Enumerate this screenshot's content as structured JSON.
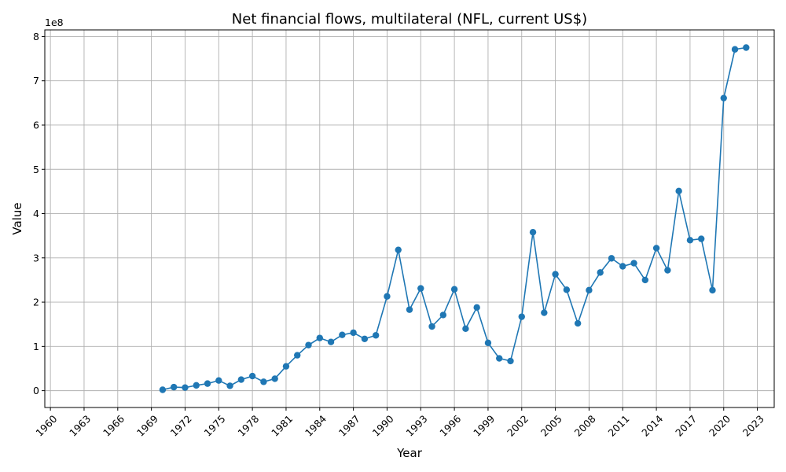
{
  "chart_data": {
    "type": "line",
    "title": "Net financial flows, multilateral (NFL, current US$)",
    "xlabel": "Year",
    "ylabel": "Value",
    "y_multiplier_label": "1e8",
    "y_multiplier": 100000000,
    "xlim": [
      1959.5,
      2024.5
    ],
    "ylim": [
      -0.38,
      8.15
    ],
    "x_ticks": [
      1960,
      1963,
      1966,
      1969,
      1972,
      1975,
      1978,
      1981,
      1984,
      1987,
      1990,
      1993,
      1996,
      1999,
      2002,
      2005,
      2008,
      2011,
      2014,
      2017,
      2020,
      2023
    ],
    "y_ticks": [
      0,
      1,
      2,
      3,
      4,
      5,
      6,
      7,
      8
    ],
    "grid": true,
    "series_color": "#1f77b4",
    "series": [
      {
        "x": [
          1970,
          1971,
          1972,
          1973,
          1974,
          1975,
          1976,
          1977,
          1978,
          1979,
          1980,
          1981,
          1982,
          1983,
          1984,
          1985,
          1986,
          1987,
          1988,
          1989,
          1990,
          1991,
          1992,
          1993,
          1994,
          1995,
          1996,
          1997,
          1998,
          1999,
          2000,
          2001,
          2002,
          2003,
          2004,
          2005,
          2006,
          2007,
          2008,
          2009,
          2010,
          2011,
          2012,
          2013,
          2014,
          2015,
          2016,
          2017,
          2018,
          2019,
          2020,
          2021,
          2022
        ],
        "y": [
          0.02,
          0.08,
          0.07,
          0.12,
          0.16,
          0.23,
          0.11,
          0.25,
          0.33,
          0.2,
          0.27,
          0.55,
          0.8,
          1.03,
          1.19,
          1.1,
          1.26,
          1.31,
          1.17,
          1.25,
          2.13,
          3.18,
          1.83,
          2.31,
          1.45,
          1.71,
          2.29,
          1.4,
          1.88,
          1.08,
          0.73,
          0.67,
          1.67,
          3.58,
          1.76,
          2.63,
          2.28,
          1.52,
          2.27,
          2.67,
          2.99,
          2.81,
          2.88,
          2.5,
          3.22,
          2.72,
          4.51,
          3.4,
          3.43,
          2.27,
          6.61,
          7.71,
          7.75
        ]
      }
    ]
  }
}
